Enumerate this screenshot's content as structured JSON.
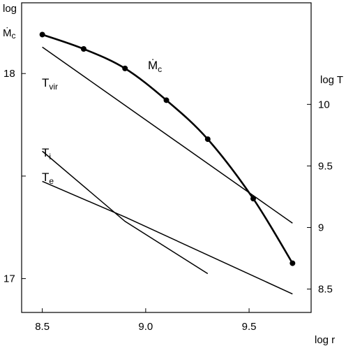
{
  "chart_data": {
    "type": "line",
    "x_axis": {
      "label": "log r",
      "range": [
        8.4,
        9.8
      ],
      "ticks": [
        8.5,
        9.0,
        9.5
      ],
      "tick_labels": [
        "8.5",
        "9.0",
        "9.5"
      ]
    },
    "y_left_axis": {
      "label_top": "log",
      "label_bottom": "Ṁ",
      "label_sub": "c",
      "range": [
        16.835,
        18.345
      ],
      "ticks": [
        17.0,
        17.5,
        18.0
      ],
      "tick_labels": [
        "17",
        "",
        "18"
      ]
    },
    "y_right_axis": {
      "label": "log T",
      "range": [
        8.31,
        10.825
      ],
      "ticks": [
        8.5,
        9.0,
        9.5,
        10.0
      ],
      "tick_labels": [
        "8.5",
        "9",
        "9.5",
        "10"
      ]
    },
    "grid": false,
    "series": [
      {
        "name": "Ṁ",
        "name_sub": "c",
        "axis": "left",
        "style": "thick-with-markers",
        "x": [
          8.5,
          8.7,
          8.9,
          9.1,
          9.3,
          9.52,
          9.71
        ],
        "y": [
          18.19,
          18.12,
          18.025,
          17.87,
          17.68,
          17.39,
          17.075
        ]
      },
      {
        "name": "T",
        "name_sub": "vir",
        "axis": "right",
        "style": "thin",
        "x": [
          8.5,
          9.71
        ],
        "y": [
          10.465,
          9.035
        ]
      },
      {
        "name": "T",
        "name_sub": "i",
        "axis": "right",
        "style": "thin",
        "x": [
          8.5,
          8.9,
          9.3
        ],
        "y": [
          9.62,
          9.05,
          8.625
        ]
      },
      {
        "name": "T",
        "name_sub": "e",
        "axis": "right",
        "style": "thin",
        "x": [
          8.5,
          8.9,
          9.71
        ],
        "y": [
          9.375,
          9.085,
          8.46
        ]
      }
    ]
  }
}
